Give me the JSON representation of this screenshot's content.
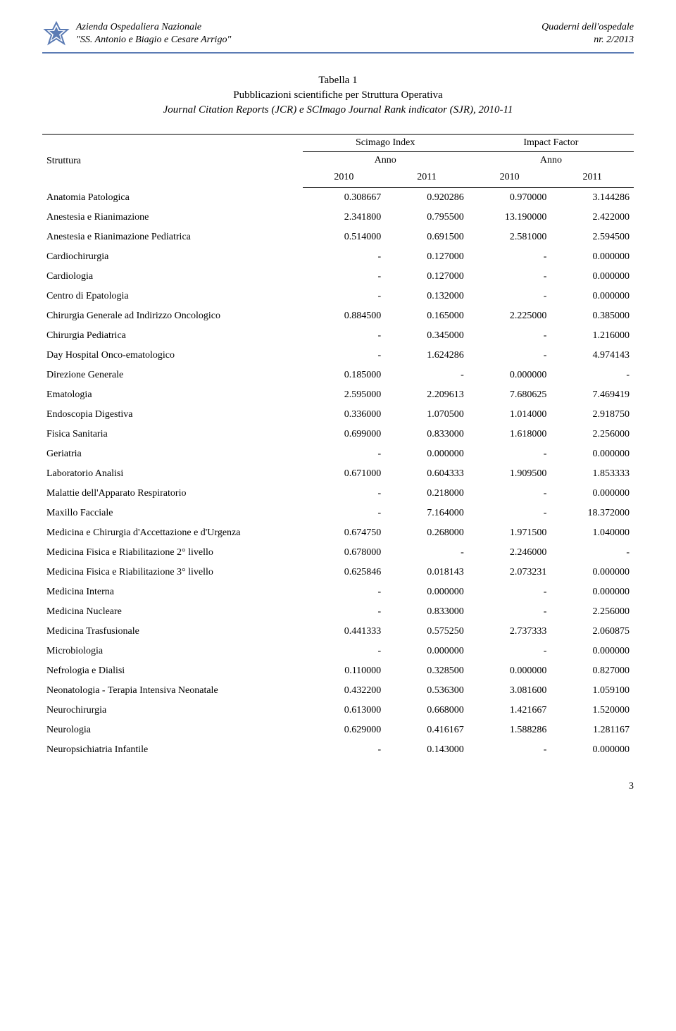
{
  "header": {
    "org_line1": "Azienda Ospedaliera Nazionale",
    "org_line2": "\"SS. Antonio e Biagio e Cesare Arrigo\"",
    "right_line1": "Quaderni dell'ospedale",
    "right_line2": "nr. 2/2013"
  },
  "title": {
    "line1": "Tabella 1",
    "line2": "Pubblicazioni scientifiche per Struttura Operativa",
    "line3": "Journal Citation Reports (JCR) e SCImago Journal Rank indicator (SJR), 2010-11"
  },
  "table": {
    "col_struttura": "Struttura",
    "group1": "Scimago Index",
    "group2": "Impact Factor",
    "sub_anno": "Anno",
    "y2010": "2010",
    "y2011": "2011",
    "rows": [
      {
        "label": "Anatomia Patologica",
        "c1": "0.308667",
        "c2": "0.920286",
        "c3": "0.970000",
        "c4": "3.144286"
      },
      {
        "label": "Anestesia e Rianimazione",
        "c1": "2.341800",
        "c2": "0.795500",
        "c3": "13.190000",
        "c4": "2.422000"
      },
      {
        "label": "Anestesia e Rianimazione Pediatrica",
        "c1": "0.514000",
        "c2": "0.691500",
        "c3": "2.581000",
        "c4": "2.594500"
      },
      {
        "label": "Cardiochirurgia",
        "c1": "-",
        "c2": "0.127000",
        "c3": "-",
        "c4": "0.000000"
      },
      {
        "label": "Cardiologia",
        "c1": "-",
        "c2": "0.127000",
        "c3": "-",
        "c4": "0.000000"
      },
      {
        "label": "Centro di Epatologia",
        "c1": "-",
        "c2": "0.132000",
        "c3": "-",
        "c4": "0.000000"
      },
      {
        "label": "Chirurgia Generale ad Indirizzo Oncologico",
        "c1": "0.884500",
        "c2": "0.165000",
        "c3": "2.225000",
        "c4": "0.385000"
      },
      {
        "label": "Chirurgia Pediatrica",
        "c1": "-",
        "c2": "0.345000",
        "c3": "-",
        "c4": "1.216000"
      },
      {
        "label": "Day Hospital Onco-ematologico",
        "c1": "-",
        "c2": "1.624286",
        "c3": "-",
        "c4": "4.974143"
      },
      {
        "label": "Direzione Generale",
        "c1": "0.185000",
        "c2": "-",
        "c3": "0.000000",
        "c4": "-"
      },
      {
        "label": "Ematologia",
        "c1": "2.595000",
        "c2": "2.209613",
        "c3": "7.680625",
        "c4": "7.469419"
      },
      {
        "label": "Endoscopia Digestiva",
        "c1": "0.336000",
        "c2": "1.070500",
        "c3": "1.014000",
        "c4": "2.918750"
      },
      {
        "label": "Fisica Sanitaria",
        "c1": "0.699000",
        "c2": "0.833000",
        "c3": "1.618000",
        "c4": "2.256000"
      },
      {
        "label": "Geriatria",
        "c1": "-",
        "c2": "0.000000",
        "c3": "-",
        "c4": "0.000000"
      },
      {
        "label": "Laboratorio Analisi",
        "c1": "0.671000",
        "c2": "0.604333",
        "c3": "1.909500",
        "c4": "1.853333"
      },
      {
        "label": "Malattie dell'Apparato Respiratorio",
        "c1": "-",
        "c2": "0.218000",
        "c3": "-",
        "c4": "0.000000"
      },
      {
        "label": "Maxillo Facciale",
        "c1": "-",
        "c2": "7.164000",
        "c3": "-",
        "c4": "18.372000"
      },
      {
        "label": "Medicina e Chirurgia d'Accettazione e d'Urgenza",
        "c1": "0.674750",
        "c2": "0.268000",
        "c3": "1.971500",
        "c4": "1.040000"
      },
      {
        "label": "Medicina Fisica e Riabilitazione 2° livello",
        "c1": "0.678000",
        "c2": "-",
        "c3": "2.246000",
        "c4": "-"
      },
      {
        "label": "Medicina Fisica e Riabilitazione 3° livello",
        "c1": "0.625846",
        "c2": "0.018143",
        "c3": "2.073231",
        "c4": "0.000000"
      },
      {
        "label": "Medicina Interna",
        "c1": "-",
        "c2": "0.000000",
        "c3": "-",
        "c4": "0.000000"
      },
      {
        "label": "Medicina Nucleare",
        "c1": "-",
        "c2": "0.833000",
        "c3": "-",
        "c4": "2.256000"
      },
      {
        "label": "Medicina Trasfusionale",
        "c1": "0.441333",
        "c2": "0.575250",
        "c3": "2.737333",
        "c4": "2.060875"
      },
      {
        "label": "Microbiologia",
        "c1": "-",
        "c2": "0.000000",
        "c3": "-",
        "c4": "0.000000"
      },
      {
        "label": "Nefrologia e Dialisi",
        "c1": "0.110000",
        "c2": "0.328500",
        "c3": "0.000000",
        "c4": "0.827000"
      },
      {
        "label": "Neonatologia - Terapia Intensiva Neonatale",
        "c1": "0.432200",
        "c2": "0.536300",
        "c3": "3.081600",
        "c4": "1.059100"
      },
      {
        "label": "Neurochirurgia",
        "c1": "0.613000",
        "c2": "0.668000",
        "c3": "1.421667",
        "c4": "1.520000"
      },
      {
        "label": "Neurologia",
        "c1": "0.629000",
        "c2": "0.416167",
        "c3": "1.588286",
        "c4": "1.281167"
      },
      {
        "label": "Neuropsichiatria Infantile",
        "c1": "-",
        "c2": "0.143000",
        "c3": "-",
        "c4": "0.000000"
      }
    ]
  },
  "page_number": "3"
}
